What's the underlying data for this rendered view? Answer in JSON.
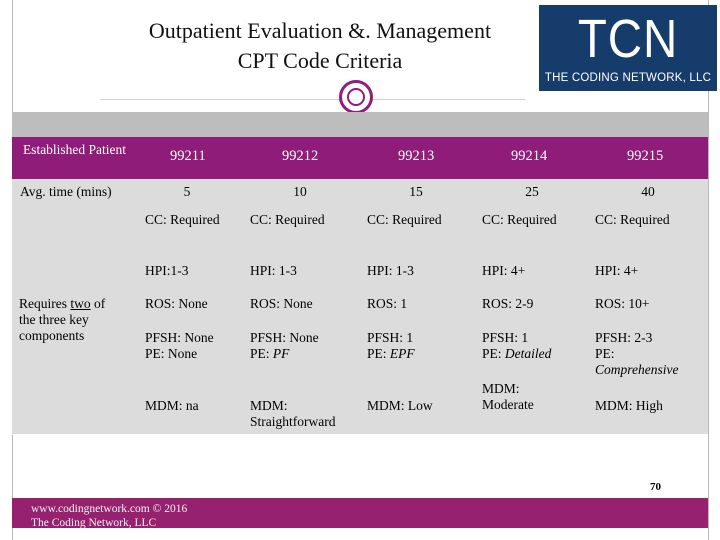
{
  "title": {
    "line1": "Outpatient Evaluation &. Management",
    "line2": "CPT Code Criteria"
  },
  "logo": {
    "mark": "TCN",
    "subtitle": "THE CODING NETWORK, LLC",
    "bg_color": "#163c6c"
  },
  "colors": {
    "header_band": "#8f1c78",
    "table_bg": "#dcdcdc",
    "footer_band": "#96216f",
    "accent_ring": "#8e1f7b"
  },
  "table": {
    "header_label": "Established Patient",
    "codes": [
      "99211",
      "99212",
      "99213",
      "99214",
      "99215"
    ],
    "time_label": "Avg. time (mins)",
    "times": [
      "5",
      "10",
      "15",
      "25",
      "40"
    ],
    "components_label_prefix": "Requires ",
    "components_label_emph": "two",
    "components_label_suffix": " of the three key components",
    "cc": [
      "CC: Required",
      "CC: Required",
      "CC: Required",
      "CC: Required",
      "CC: Required"
    ],
    "hpi": [
      "HPI:1-3",
      "HPI: 1-3",
      "HPI: 1-3",
      "HPI: 4+",
      "HPI: 4+"
    ],
    "ros": [
      "ROS: None",
      "ROS: None",
      "ROS: 1",
      "ROS: 2-9",
      "ROS: 10+"
    ],
    "pfsh": [
      "PFSH: None",
      "PFSH: None",
      "PFSH: 1",
      "PFSH: 1",
      "PFSH: 2-3"
    ],
    "pe_prefix": [
      "PE: None",
      "PE: ",
      "PE: ",
      "PE: ",
      "PE:"
    ],
    "pe_emph": [
      "",
      "PF",
      "EPF",
      "Detailed",
      "Comprehensive"
    ],
    "mdm_1": "MDM: na",
    "mdm_2_line1": "MDM:",
    "mdm_2_line2": "Straightforward",
    "mdm_3": "MDM: Low",
    "mdm_4_line1": "MDM:",
    "mdm_4_line2": "Moderate",
    "mdm_5": "MDM: High"
  },
  "page_number": "70",
  "footer": {
    "line1": "www.codingnetwork.com © 2016",
    "line2": "The Coding Network, LLC"
  }
}
